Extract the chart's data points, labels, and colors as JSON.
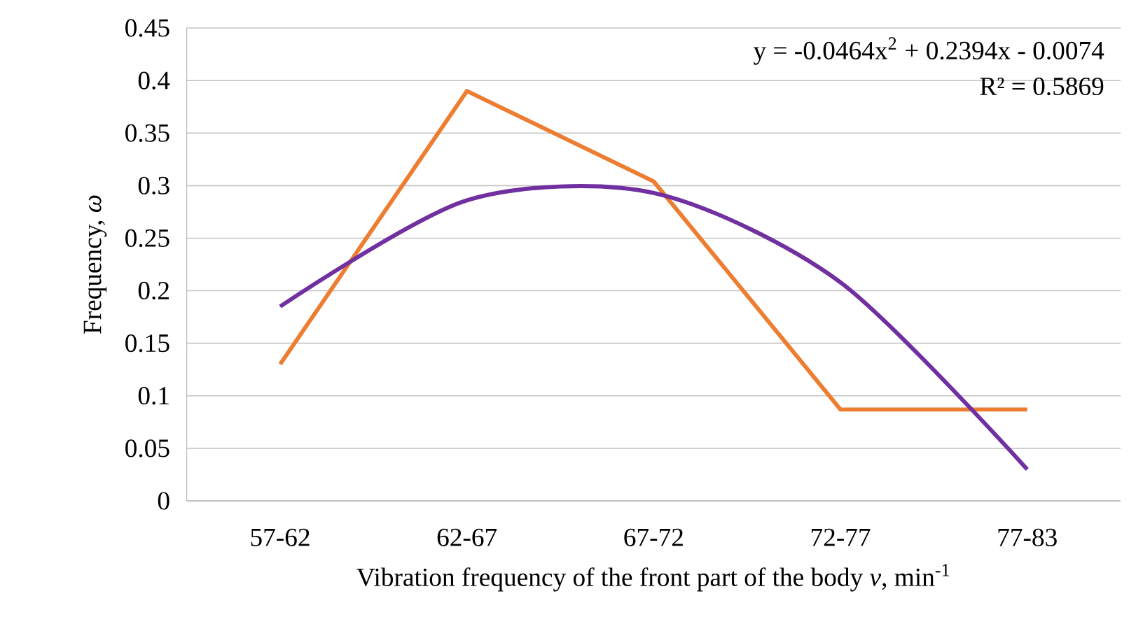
{
  "chart_data": {
    "type": "line",
    "xlabel": "Vibration frequency of the front part of the body  *ν*, min$^{-1}$",
    "ylabel": "Frequency, *ω*",
    "categories": [
      "57-62",
      "62-67",
      "67-72",
      "72-77",
      "77-83"
    ],
    "series": [
      {
        "color": "#ed7d31",
        "values": [
          0.13,
          0.39,
          0.304,
          0.087,
          0.087
        ]
      },
      {
        "type": "line",
        "color": "#7030a0",
        "values": [
          0.185,
          0.286,
          0.293,
          0.208,
          0.03
        ]
      }
    ],
    "ylim": [
      0,
      0.45
    ],
    "yticks": [
      0,
      0.05,
      0.1,
      0.15,
      0.2,
      0.25,
      0.3,
      0.35,
      0.4,
      0.45
    ],
    "grid": "y",
    "marker": "none",
    "annotations": [
      "y = -0.0464x$^{2}$ + 0.2394x - 0.0074",
      "R² = 0.5869"
    ]
  }
}
